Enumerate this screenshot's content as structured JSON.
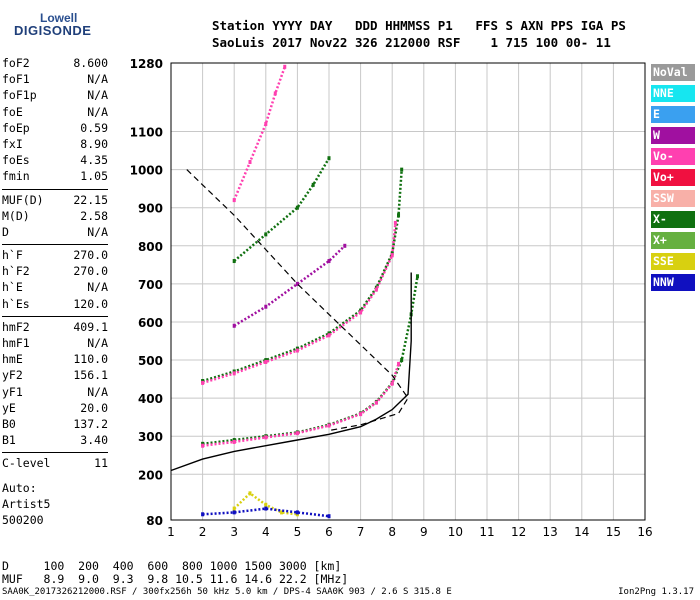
{
  "logo": {
    "line1": "Lowell",
    "line2": "DIGISONDE"
  },
  "header": {
    "row1": "Station YYYY DAY   DDD HHMMSS P1   FFS S AXN PPS IGA PS",
    "row2": "SaoLuis 2017 Nov22 326 212000 RSF    1 715 100 00- 11"
  },
  "params_groups": [
    [
      {
        "label": "foF2",
        "value": "8.600"
      },
      {
        "label": "foF1",
        "value": "N/A"
      },
      {
        "label": "foF1p",
        "value": "N/A"
      },
      {
        "label": "foE",
        "value": "N/A"
      },
      {
        "label": "foEp",
        "value": "0.59"
      },
      {
        "label": "fxI",
        "value": "8.90"
      },
      {
        "label": "foEs",
        "value": "4.35"
      },
      {
        "label": "fmin",
        "value": "1.05"
      }
    ],
    [
      {
        "label": "MUF(D)",
        "value": "22.15"
      },
      {
        "label": "M(D)",
        "value": "2.58"
      },
      {
        "label": "D",
        "value": "N/A"
      }
    ],
    [
      {
        "label": "h`F",
        "value": "270.0"
      },
      {
        "label": "h`F2",
        "value": "270.0"
      },
      {
        "label": "h`E",
        "value": "N/A"
      },
      {
        "label": "h`Es",
        "value": "120.0"
      }
    ],
    [
      {
        "label": "hmF2",
        "value": "409.1"
      },
      {
        "label": "hmF1",
        "value": "N/A"
      },
      {
        "label": "hmE",
        "value": "110.0"
      },
      {
        "label": "yF2",
        "value": "156.1"
      },
      {
        "label": "yF1",
        "value": "N/A"
      },
      {
        "label": "yE",
        "value": "20.0"
      },
      {
        "label": "B0",
        "value": "137.2"
      },
      {
        "label": "B1",
        "value": "3.40"
      }
    ],
    [
      {
        "label": "C-level",
        "value": "11"
      }
    ]
  ],
  "auto": {
    "line1": "Auto:",
    "line2": "Artist5",
    "line3": "500200"
  },
  "legend": [
    {
      "label": "NoVal",
      "color": "#9a9a9a"
    },
    {
      "label": "NNE",
      "color": "#16e6f0"
    },
    {
      "label": "E",
      "color": "#3aa0f0"
    },
    {
      "label": "W",
      "color": "#a010a0"
    },
    {
      "label": "Vo-",
      "color": "#ff40b0"
    },
    {
      "label": "Vo+",
      "color": "#f01040"
    },
    {
      "label": "SSW",
      "color": "#f8b0a8"
    },
    {
      "label": "X-",
      "color": "#107010"
    },
    {
      "label": "X+",
      "color": "#66b040"
    },
    {
      "label": "SSE",
      "color": "#d8d010"
    },
    {
      "label": "NNW",
      "color": "#1010c0"
    }
  ],
  "muf_table": {
    "d_row": "D     100  200  400  600  800 1000 1500 3000 [km]",
    "muf_row": "MUF   8.9  9.0  9.3  9.8 10.5 11.6 14.6 22.2 [MHz]"
  },
  "footer": "SAA0K_2017326212000.RSF / 300fx256h 50 kHz 5.0 km / DPS-4 SAA0K 903 / 2.6 S 315.8 E",
  "version": "Ion2Png 1.3.17",
  "chart_data": {
    "type": "scatter",
    "xlim": [
      1,
      16
    ],
    "ylim": [
      80,
      1280
    ],
    "xticks": [
      1,
      2,
      3,
      4,
      5,
      6,
      7,
      8,
      9,
      10,
      11,
      12,
      13,
      14,
      15,
      16
    ],
    "yticks": [
      80,
      200,
      300,
      400,
      500,
      600,
      700,
      800,
      900,
      1000,
      1100,
      1280
    ],
    "grid": true,
    "traces": [
      {
        "color": "#107010",
        "points": [
          [
            2,
            280
          ],
          [
            3,
            290
          ],
          [
            4,
            300
          ],
          [
            5,
            310
          ],
          [
            6,
            330
          ],
          [
            7,
            360
          ],
          [
            7.5,
            390
          ],
          [
            8,
            440
          ],
          [
            8.3,
            500
          ],
          [
            8.6,
            620
          ],
          [
            8.8,
            720
          ]
        ]
      },
      {
        "color": "#ff40b0",
        "points": [
          [
            2,
            275
          ],
          [
            3,
            285
          ],
          [
            4,
            297
          ],
          [
            5,
            308
          ],
          [
            6,
            328
          ],
          [
            7,
            358
          ],
          [
            7.5,
            388
          ],
          [
            8,
            438
          ],
          [
            8.2,
            490
          ]
        ]
      },
      {
        "color": "#107010",
        "points": [
          [
            2,
            445
          ],
          [
            3,
            470
          ],
          [
            4,
            500
          ],
          [
            5,
            530
          ],
          [
            6,
            570
          ],
          [
            7,
            630
          ],
          [
            7.5,
            690
          ],
          [
            8,
            780
          ],
          [
            8.2,
            880
          ],
          [
            8.3,
            1000
          ]
        ]
      },
      {
        "color": "#ff40b0",
        "points": [
          [
            2,
            440
          ],
          [
            3,
            465
          ],
          [
            4,
            495
          ],
          [
            5,
            525
          ],
          [
            6,
            565
          ],
          [
            7,
            625
          ],
          [
            7.5,
            685
          ],
          [
            8,
            775
          ],
          [
            8.1,
            860
          ]
        ]
      },
      {
        "color": "#a010a0",
        "points": [
          [
            3,
            590
          ],
          [
            4,
            640
          ],
          [
            5,
            700
          ],
          [
            6,
            760
          ],
          [
            6.5,
            800
          ]
        ]
      },
      {
        "color": "#107010",
        "points": [
          [
            3,
            760
          ],
          [
            4,
            830
          ],
          [
            5,
            900
          ],
          [
            5.5,
            960
          ],
          [
            6,
            1030
          ]
        ]
      },
      {
        "color": "#ff40b0",
        "points": [
          [
            3,
            920
          ],
          [
            3.5,
            1020
          ],
          [
            4,
            1120
          ],
          [
            4.3,
            1200
          ],
          [
            4.6,
            1270
          ]
        ]
      },
      {
        "color": "#d8d010",
        "points": [
          [
            3,
            110
          ],
          [
            3.5,
            150
          ],
          [
            4,
            120
          ],
          [
            4.5,
            100
          ],
          [
            5,
            95
          ]
        ]
      },
      {
        "color": "#1010c0",
        "points": [
          [
            2,
            95
          ],
          [
            3,
            100
          ],
          [
            4,
            110
          ],
          [
            5,
            100
          ],
          [
            6,
            90
          ]
        ]
      }
    ],
    "profile_solid": [
      [
        1,
        210
      ],
      [
        2,
        240
      ],
      [
        3,
        260
      ],
      [
        4,
        275
      ],
      [
        5,
        290
      ],
      [
        6,
        305
      ],
      [
        7,
        325
      ],
      [
        7.5,
        345
      ],
      [
        8,
        370
      ],
      [
        8.5,
        410
      ],
      [
        8.6,
        550
      ],
      [
        8.6,
        730
      ]
    ],
    "profile_dashed": [
      [
        1.5,
        1000
      ],
      [
        2,
        960
      ],
      [
        3,
        880
      ],
      [
        4,
        790
      ],
      [
        5,
        700
      ],
      [
        6,
        620
      ],
      [
        7,
        540
      ],
      [
        8,
        460
      ],
      [
        8.5,
        400
      ],
      [
        8.2,
        360
      ],
      [
        7,
        330
      ],
      [
        6,
        315
      ]
    ]
  }
}
